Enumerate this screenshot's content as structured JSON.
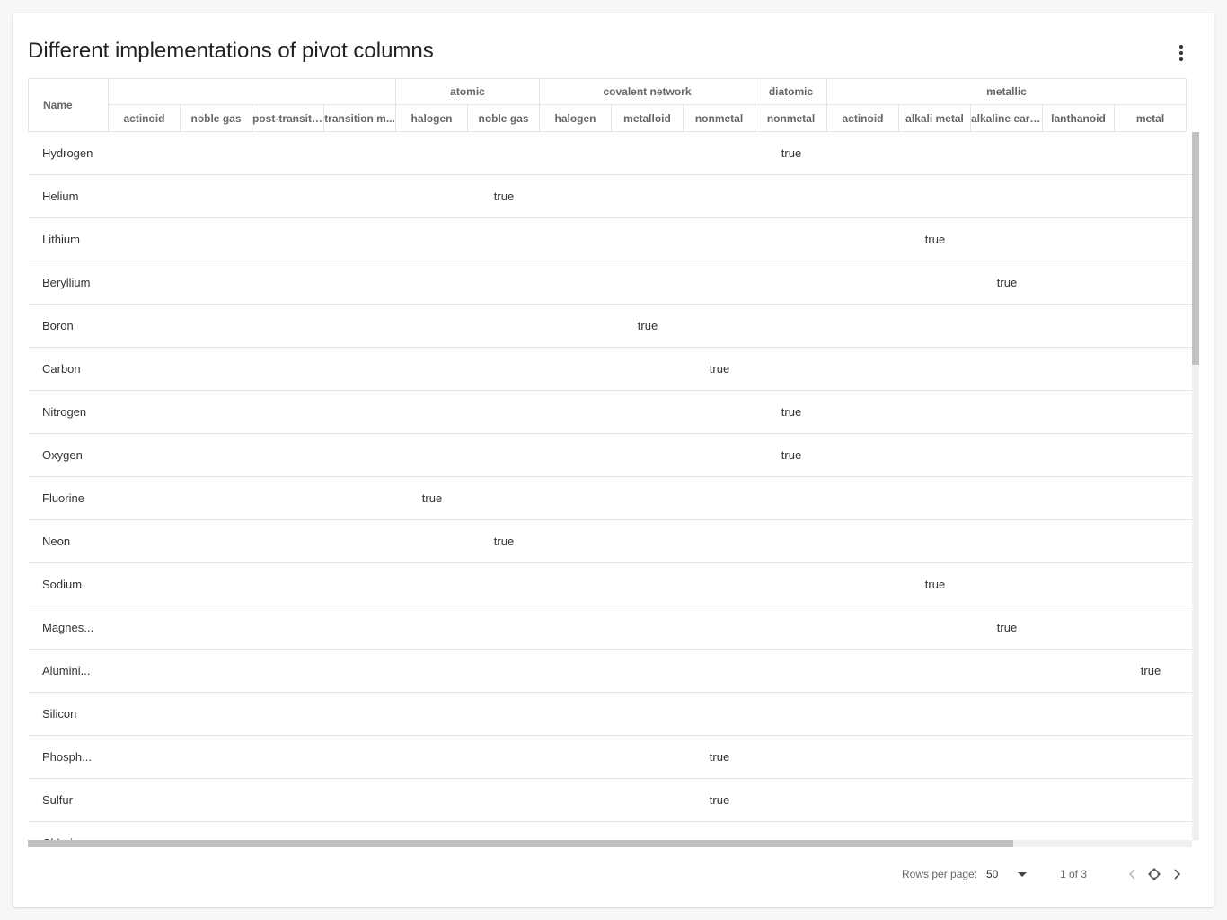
{
  "title": "Different implementations of pivot columns",
  "icons": {
    "more": "more-vert-icon",
    "prev": "chevron-left-icon",
    "reset": "reset-icon",
    "next": "chevron-right-icon"
  },
  "columns": {
    "name_header": "Name",
    "groups": [
      {
        "label": "",
        "span": 4
      },
      {
        "label": "atomic",
        "span": 2
      },
      {
        "label": "covalent network",
        "span": 3
      },
      {
        "label": "diatomic",
        "span": 1
      },
      {
        "label": "metallic",
        "span": 5
      }
    ],
    "subs": [
      "actinoid",
      "noble gas",
      "post-transiti...",
      "transition m...",
      "halogen",
      "noble gas",
      "halogen",
      "metalloid",
      "nonmetal",
      "nonmetal",
      "actinoid",
      "alkali metal",
      "alkaline eart...",
      "lanthanoid",
      "metal"
    ]
  },
  "rows": [
    {
      "name": "Hydrogen",
      "col": 9,
      "value": "true"
    },
    {
      "name": "Helium",
      "col": 5,
      "value": "true"
    },
    {
      "name": "Lithium",
      "col": 11,
      "value": "true"
    },
    {
      "name": "Beryllium",
      "col": 12,
      "value": "true"
    },
    {
      "name": "Boron",
      "col": 7,
      "value": "true"
    },
    {
      "name": "Carbon",
      "col": 8,
      "value": "true"
    },
    {
      "name": "Nitrogen",
      "col": 9,
      "value": "true"
    },
    {
      "name": "Oxygen",
      "col": 9,
      "value": "true"
    },
    {
      "name": "Fluorine",
      "col": 4,
      "value": "true"
    },
    {
      "name": "Neon",
      "col": 5,
      "value": "true"
    },
    {
      "name": "Sodium",
      "col": 11,
      "value": "true"
    },
    {
      "name": "Magnes...",
      "col": 12,
      "value": "true"
    },
    {
      "name": "Alumini...",
      "col": 14,
      "value": "true"
    },
    {
      "name": "Silicon",
      "col": -1,
      "value": ""
    },
    {
      "name": "Phosph...",
      "col": 8,
      "value": "true"
    },
    {
      "name": "Sulfur",
      "col": 8,
      "value": "true"
    },
    {
      "name": "Chlori...",
      "col": -1,
      "value": ""
    }
  ],
  "footer": {
    "rows_per_page_label": "Rows per page:",
    "rows_per_page_value": "50",
    "page_info": "1 of 3"
  }
}
